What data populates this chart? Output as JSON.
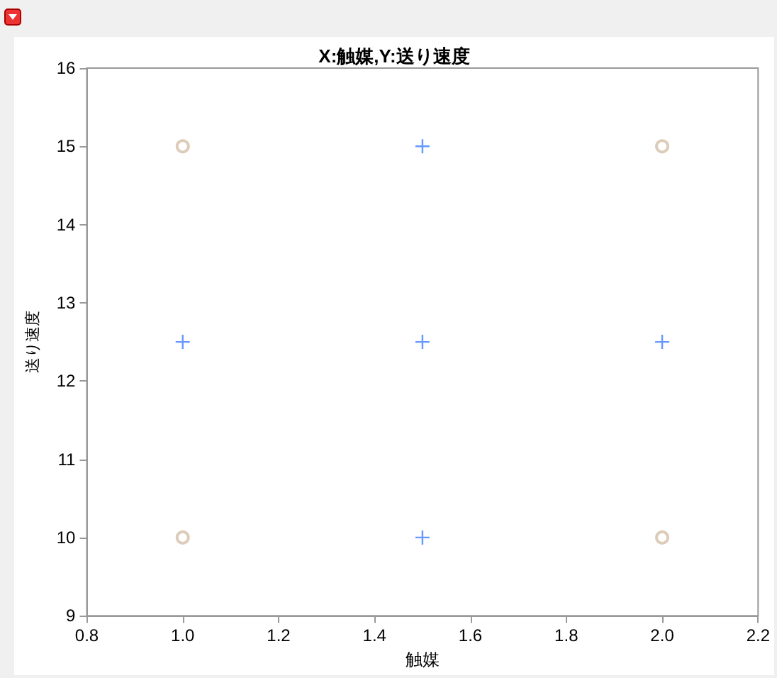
{
  "chart_data": {
    "type": "scatter",
    "title": "X:触媒,Y:送り速度",
    "xlabel": "触媒",
    "ylabel": "送り速度",
    "xlim": [
      0.8,
      2.2
    ],
    "xticks": [
      0.8,
      {
        "value": 1,
        "label": "1.0"
      },
      1.2,
      1.4,
      1.6,
      1.8,
      {
        "value": 2,
        "label": "2.0"
      },
      2.2
    ],
    "ylim": [
      9,
      16
    ],
    "yticks": [
      9,
      10,
      11,
      12,
      13,
      14,
      15,
      16
    ],
    "grid": false,
    "series": [
      {
        "color": "#d4bfa8",
        "marker": "circle",
        "x": [
          1,
          1,
          2,
          2
        ],
        "values": [
          15,
          10,
          15,
          10
        ]
      },
      {
        "color": "#3f7fff",
        "marker": "cross",
        "x": [
          1.5,
          1,
          1.5,
          2,
          1.5
        ],
        "values": [
          15,
          12.5,
          12.5,
          12.5,
          10
        ]
      }
    ]
  }
}
